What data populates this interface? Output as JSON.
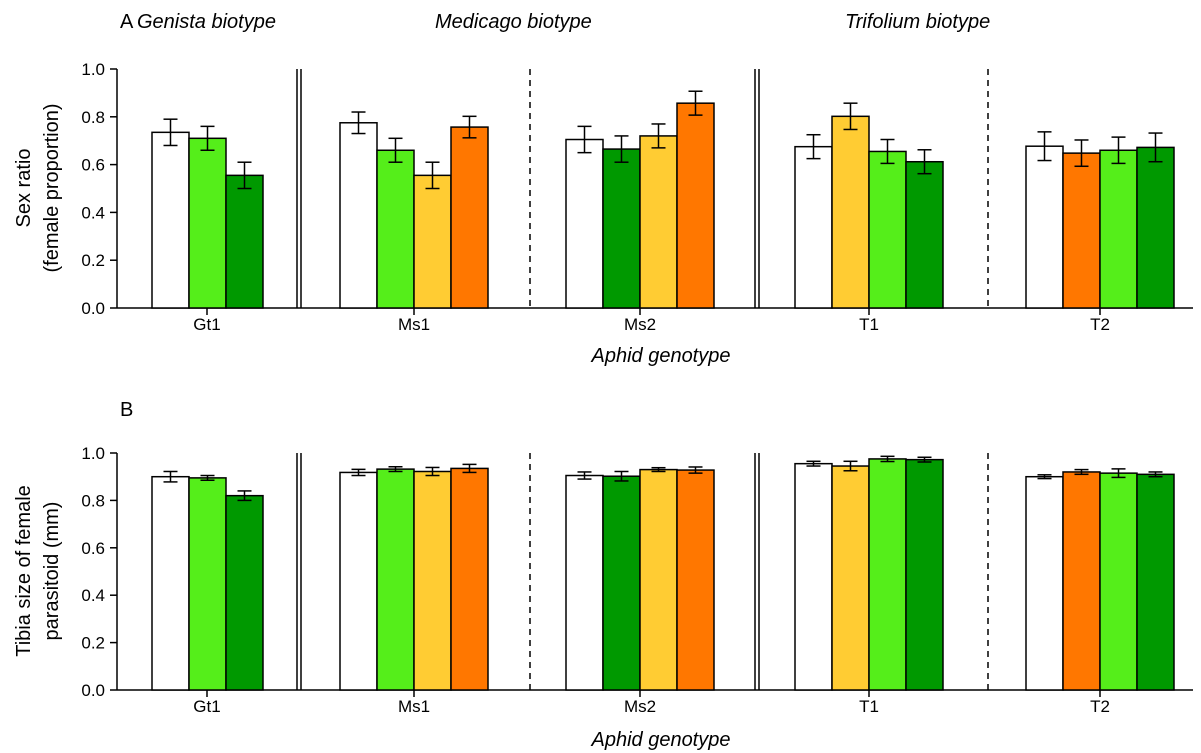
{
  "colors": {
    "white": "#ffffff",
    "light_green": "#55ee1a",
    "dark_green": "#009900",
    "yellow": "#ffcc33",
    "orange": "#ff7700"
  },
  "biotype_labels": [
    "Genista biotype",
    "Medicago biotype",
    "Trifolium biotype"
  ],
  "chart_data": [
    {
      "panel": "A",
      "type": "bar",
      "xlabel": "Aphid genotype",
      "ylabel_lines": [
        "Sex ratio",
        "(female proportion)"
      ],
      "ylim": [
        0,
        1.0
      ],
      "yticks": [
        "0.0",
        "0.2",
        "0.4",
        "0.6",
        "0.8",
        "1.0"
      ],
      "groups": [
        {
          "label": "Gt1",
          "bars": [
            {
              "value": 0.735,
              "err": 0.055,
              "color": "white"
            },
            {
              "value": 0.71,
              "err": 0.05,
              "color": "light_green"
            },
            {
              "value": 0.555,
              "err": 0.055,
              "color": "dark_green"
            }
          ]
        },
        {
          "label": "Ms1",
          "bars": [
            {
              "value": 0.775,
              "err": 0.045,
              "color": "white"
            },
            {
              "value": 0.66,
              "err": 0.05,
              "color": "light_green"
            },
            {
              "value": 0.555,
              "err": 0.055,
              "color": "yellow"
            },
            {
              "value": 0.757,
              "err": 0.045,
              "color": "orange"
            }
          ]
        },
        {
          "label": "Ms2",
          "bars": [
            {
              "value": 0.705,
              "err": 0.055,
              "color": "white"
            },
            {
              "value": 0.665,
              "err": 0.055,
              "color": "dark_green"
            },
            {
              "value": 0.72,
              "err": 0.05,
              "color": "yellow"
            },
            {
              "value": 0.857,
              "err": 0.05,
              "color": "orange"
            }
          ]
        },
        {
          "label": "T1",
          "bars": [
            {
              "value": 0.675,
              "err": 0.05,
              "color": "white"
            },
            {
              "value": 0.802,
              "err": 0.055,
              "color": "yellow"
            },
            {
              "value": 0.655,
              "err": 0.05,
              "color": "light_green"
            },
            {
              "value": 0.612,
              "err": 0.05,
              "color": "dark_green"
            }
          ]
        },
        {
          "label": "T2",
          "bars": [
            {
              "value": 0.677,
              "err": 0.06,
              "color": "white"
            },
            {
              "value": 0.648,
              "err": 0.055,
              "color": "orange"
            },
            {
              "value": 0.66,
              "err": 0.055,
              "color": "light_green"
            },
            {
              "value": 0.672,
              "err": 0.06,
              "color": "dark_green"
            }
          ]
        }
      ]
    },
    {
      "panel": "B",
      "type": "bar",
      "xlabel": "Aphid genotype",
      "ylabel_lines": [
        "Tibia size of female",
        "parasitoid (mm)"
      ],
      "ylim": [
        0,
        1.0
      ],
      "yticks": [
        "0.0",
        "0.2",
        "0.4",
        "0.6",
        "0.8",
        "1.0"
      ],
      "groups": [
        {
          "label": "Gt1",
          "bars": [
            {
              "value": 0.9,
              "err": 0.022,
              "color": "white"
            },
            {
              "value": 0.895,
              "err": 0.01,
              "color": "light_green"
            },
            {
              "value": 0.82,
              "err": 0.02,
              "color": "dark_green"
            }
          ]
        },
        {
          "label": "Ms1",
          "bars": [
            {
              "value": 0.918,
              "err": 0.013,
              "color": "white"
            },
            {
              "value": 0.932,
              "err": 0.01,
              "color": "light_green"
            },
            {
              "value": 0.922,
              "err": 0.017,
              "color": "yellow"
            },
            {
              "value": 0.935,
              "err": 0.017,
              "color": "orange"
            }
          ]
        },
        {
          "label": "Ms2",
          "bars": [
            {
              "value": 0.905,
              "err": 0.015,
              "color": "white"
            },
            {
              "value": 0.902,
              "err": 0.02,
              "color": "dark_green"
            },
            {
              "value": 0.93,
              "err": 0.008,
              "color": "yellow"
            },
            {
              "value": 0.928,
              "err": 0.013,
              "color": "orange"
            }
          ]
        },
        {
          "label": "T1",
          "bars": [
            {
              "value": 0.955,
              "err": 0.01,
              "color": "white"
            },
            {
              "value": 0.945,
              "err": 0.02,
              "color": "yellow"
            },
            {
              "value": 0.975,
              "err": 0.011,
              "color": "light_green"
            },
            {
              "value": 0.972,
              "err": 0.01,
              "color": "dark_green"
            }
          ]
        },
        {
          "label": "T2",
          "bars": [
            {
              "value": 0.9,
              "err": 0.008,
              "color": "white"
            },
            {
              "value": 0.92,
              "err": 0.01,
              "color": "orange"
            },
            {
              "value": 0.915,
              "err": 0.018,
              "color": "light_green"
            },
            {
              "value": 0.91,
              "err": 0.01,
              "color": "dark_green"
            }
          ]
        }
      ]
    }
  ]
}
